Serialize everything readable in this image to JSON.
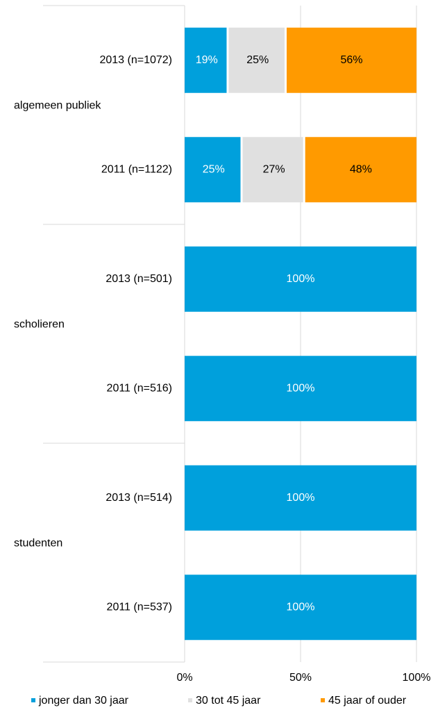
{
  "chart_data": {
    "type": "stacked-bar-horizontal",
    "groups": [
      {
        "label": "algemeen publiek",
        "categories": [
          0,
          1
        ]
      },
      {
        "label": "scholieren",
        "categories": [
          2,
          3
        ]
      },
      {
        "label": "studenten",
        "categories": [
          4,
          5
        ]
      }
    ],
    "categories": [
      "2013 (n=1072)",
      "2011 (n=1122)",
      "2013 (n=501)",
      "2011 (n=516)",
      "2013 (n=514)",
      "2011 (n=537)"
    ],
    "series": [
      {
        "name": "jonger dan 30 jaar",
        "color": "#00a0dc",
        "label_color": "#ffffff",
        "values": [
          19,
          25,
          100,
          100,
          100,
          100
        ],
        "value_labels": [
          "19%",
          "25%",
          "100%",
          "100%",
          "100%",
          "100%"
        ]
      },
      {
        "name": "30 tot 45 jaar",
        "color": "#e0e0e0",
        "label_color": "#000000",
        "values": [
          25,
          27,
          0,
          0,
          0,
          0
        ],
        "value_labels": [
          "25%",
          "27%",
          null,
          null,
          null,
          null
        ]
      },
      {
        "name": "45 jaar of ouder",
        "color": "#ff9a00",
        "label_color": "#000000",
        "values": [
          56,
          48,
          0,
          0,
          0,
          0
        ],
        "value_labels": [
          "56%",
          "48%",
          null,
          null,
          null,
          null
        ]
      }
    ],
    "xlim": [
      0,
      100
    ],
    "xticks": [
      {
        "value": 0,
        "label": "0%"
      },
      {
        "value": 50,
        "label": "50%"
      },
      {
        "value": 100,
        "label": "100%"
      }
    ],
    "grid": true,
    "legend": "bottom"
  }
}
